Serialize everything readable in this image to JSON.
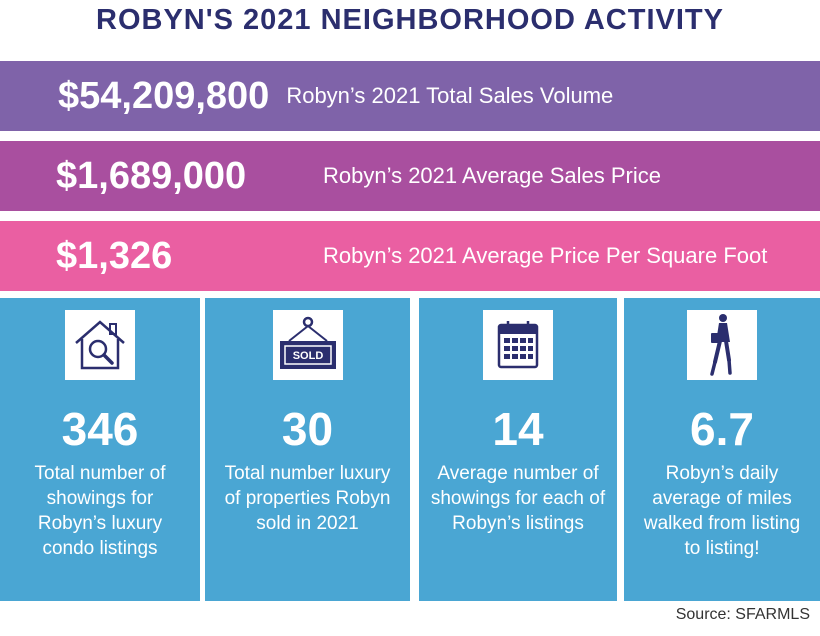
{
  "title": "ROBYN'S 2021 NEIGHBORHOOD ACTIVITY",
  "bands": [
    {
      "amount": "$54,209,800",
      "desc": "Robyn’s 2021 Total Sales Volume",
      "color": "#7f63a9"
    },
    {
      "amount": "$1,689,000",
      "desc": "Robyn’s 2021 Average Sales Price",
      "color": "#a94f9f"
    },
    {
      "amount": "$1,326",
      "desc": "Robyn’s 2021 Average Price Per Square Foot",
      "color": "#ea5fa2"
    }
  ],
  "cards": [
    {
      "icon": "house-search-icon",
      "value": "346",
      "caption": "Total number of showings for Robyn’s luxury condo listings"
    },
    {
      "icon": "sold-sign-icon",
      "sign_text": "SOLD",
      "value": "30",
      "caption": "Total number luxury of properties Robyn sold in 2021"
    },
    {
      "icon": "calendar-icon",
      "value": "14",
      "caption": "Average number of showings for each of Robyn’s listings"
    },
    {
      "icon": "walking-person-icon",
      "value": "6.7",
      "caption": "Robyn’s daily average of miles walked from listing to listing!"
    }
  ],
  "card_color": "#4aa6d3",
  "title_color": "#2b2e6e",
  "source": "Source: SFARMLS"
}
